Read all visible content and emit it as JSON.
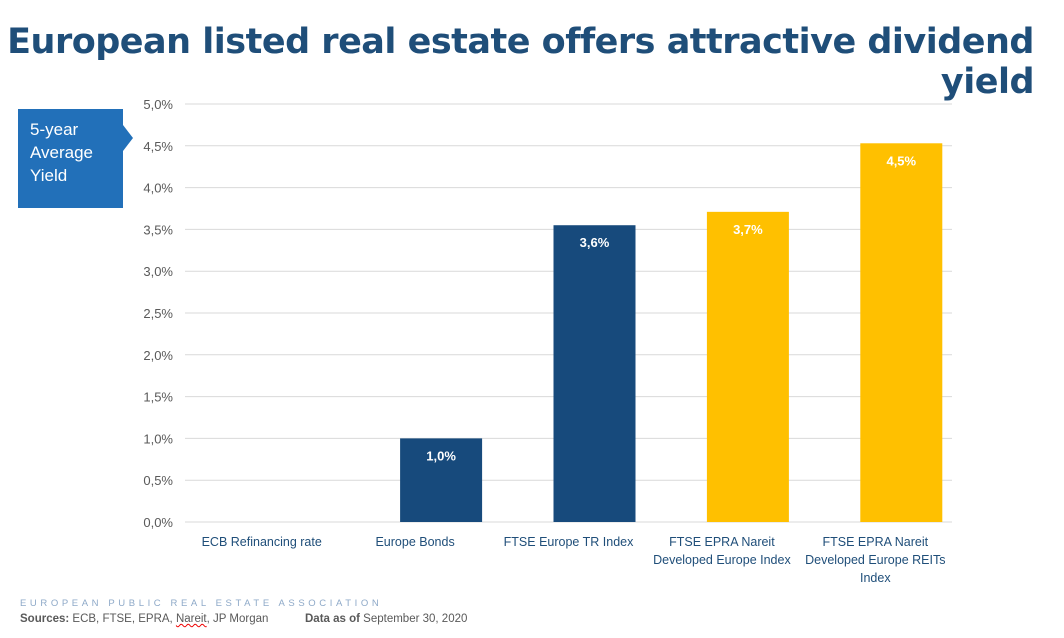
{
  "chart_data": {
    "type": "bar",
    "title": "European listed real estate offers attractive dividend yield",
    "callout": [
      "5-year",
      "Average",
      "Yield"
    ],
    "categories": [
      [
        "ECB Refinancing rate"
      ],
      [
        "Europe Bonds"
      ],
      [
        "FTSE Europe TR Index"
      ],
      [
        "FTSE EPRA Nareit",
        "Developed Europe Index"
      ],
      [
        "FTSE EPRA Nareit",
        "Developed Europe REITs",
        "Index"
      ]
    ],
    "values": [
      0.0,
      1.0,
      3.55,
      3.71,
      4.53
    ],
    "data_labels": [
      "",
      "1,0%",
      "3,6%",
      "3,7%",
      "4,5%"
    ],
    "colors": [
      "#174a7c",
      "#174a7c",
      "#174a7c",
      "#ffc000",
      "#ffc000"
    ],
    "ylim": [
      0,
      5.0
    ],
    "yticks": [
      "0,0%",
      "0,5%",
      "1,0%",
      "1,5%",
      "2,0%",
      "2,5%",
      "3,0%",
      "3,5%",
      "4,0%",
      "4,5%",
      "5,0%"
    ],
    "grid": true,
    "xlabel": "",
    "ylabel": ""
  },
  "footer": {
    "organization": "EUROPEAN PUBLIC REAL ESTATE ASSOCIATION",
    "sources_label": "Sources:",
    "sources_pre": " ECB, FTSE, EPRA, ",
    "sources_nareit": "Nareit",
    "sources_post": ", JP Morgan",
    "asof_label": "Data as of",
    "asof_value": " September 30, 2020"
  }
}
